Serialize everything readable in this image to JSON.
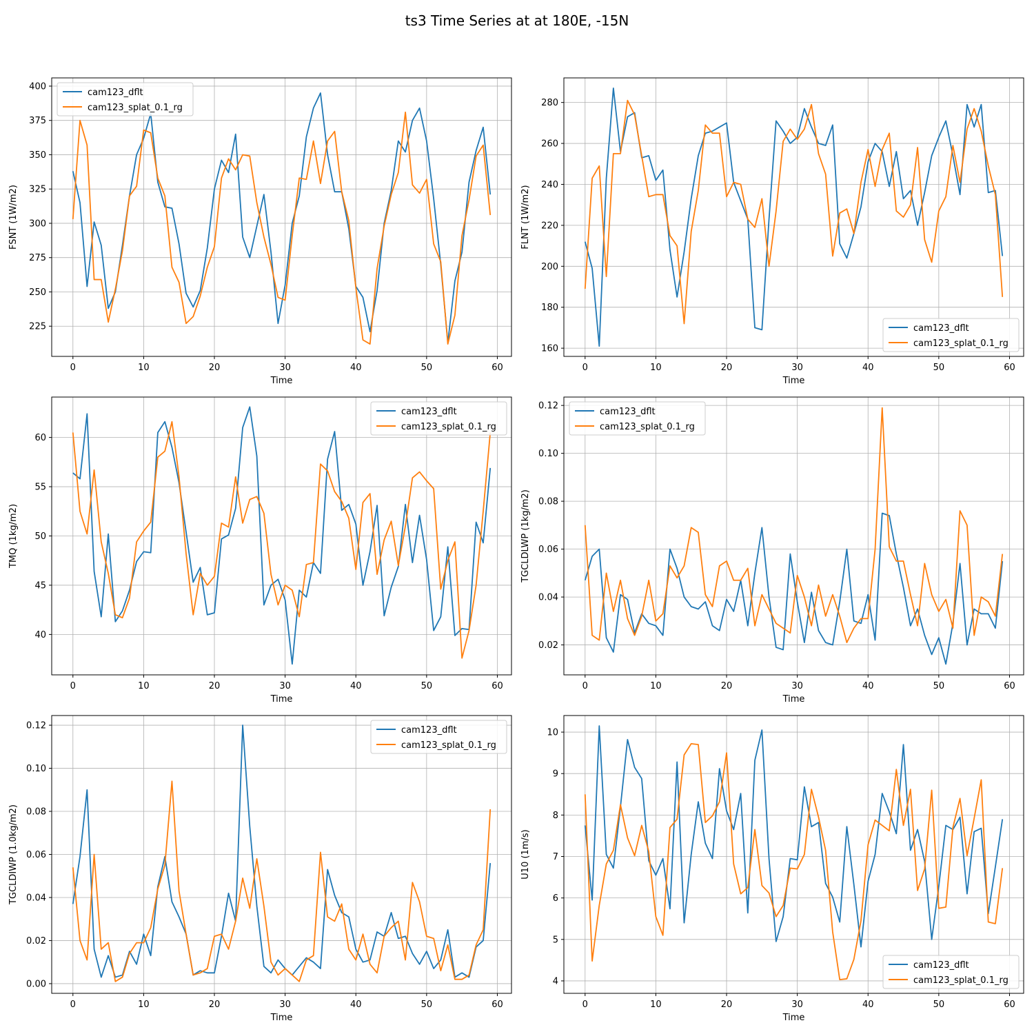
{
  "title": "ts3 Time Series at at 180E, -15N",
  "colors": {
    "series0": "#1f77b4",
    "series1": "#ff7f0e",
    "grid": "#b0b0b0",
    "axis": "#000000"
  },
  "chart_data": [
    {
      "type": "line",
      "xlabel": "Time",
      "ylabel": "FSNT (1W/m2)",
      "xlim": [
        -3,
        62
      ],
      "ylim": [
        203,
        406
      ],
      "xticks": [
        0,
        10,
        20,
        30,
        40,
        50,
        60
      ],
      "yticks": [
        225,
        250,
        275,
        300,
        325,
        350,
        375,
        400
      ],
      "ytick_labels": [
        "225",
        "250",
        "275",
        "300",
        "325",
        "350",
        "375",
        "400"
      ],
      "grid": true,
      "legend": "upper left",
      "series": [
        {
          "name": "cam123_dflt",
          "values": [
            338,
            315,
            254,
            301,
            284,
            238,
            250,
            284,
            320,
            350,
            362,
            380,
            330,
            312,
            311,
            285,
            249,
            239,
            251,
            282,
            325,
            346,
            337,
            365,
            290,
            275,
            298,
            321,
            279,
            227,
            255,
            300,
            320,
            363,
            384,
            395,
            350,
            323,
            323,
            296,
            254,
            246,
            221,
            251,
            300,
            324,
            360,
            352,
            375,
            384,
            360,
            318,
            270,
            213,
            258,
            279,
            330,
            353,
            370,
            321
          ]
        },
        {
          "name": "cam123_splat_0.1_rg",
          "values": [
            303,
            375,
            357,
            259,
            259,
            228,
            252,
            280,
            320,
            327,
            368,
            366,
            333,
            320,
            268,
            257,
            227,
            232,
            247,
            268,
            283,
            333,
            347,
            339,
            350,
            349,
            315,
            290,
            270,
            246,
            244,
            291,
            333,
            332,
            360,
            329,
            360,
            367,
            323,
            302,
            253,
            215,
            212,
            267,
            298,
            321,
            337,
            381,
            328,
            322,
            332,
            285,
            272,
            212,
            233,
            291,
            317,
            349,
            357,
            306
          ]
        }
      ]
    },
    {
      "type": "line",
      "xlabel": "Time",
      "ylabel": "FLNT (1W/m2)",
      "xlim": [
        -3,
        62
      ],
      "ylim": [
        156,
        292
      ],
      "xticks": [
        0,
        10,
        20,
        30,
        40,
        50,
        60
      ],
      "yticks": [
        160,
        180,
        200,
        220,
        240,
        260,
        280
      ],
      "ytick_labels": [
        "160",
        "180",
        "200",
        "220",
        "240",
        "260",
        "280"
      ],
      "grid": true,
      "legend": "lower right",
      "series": [
        {
          "name": "cam123_dflt",
          "values": [
            212,
            199,
            161,
            243,
            287,
            256,
            273,
            275,
            253,
            254,
            242,
            247,
            208,
            185,
            207,
            233,
            254,
            265,
            266,
            268,
            270,
            241,
            232,
            223,
            170,
            169,
            223,
            271,
            266,
            260,
            263,
            277,
            268,
            260,
            259,
            269,
            211,
            204,
            216,
            229,
            251,
            260,
            256,
            239,
            256,
            233,
            237,
            220,
            236,
            254,
            263,
            271,
            254,
            235,
            279,
            268,
            279,
            236,
            237,
            205
          ]
        },
        {
          "name": "cam123_splat_0.1_rg",
          "values": [
            189,
            243,
            249,
            195,
            255,
            255,
            281,
            274,
            254,
            234,
            235,
            235,
            215,
            210,
            172,
            217,
            237,
            269,
            265,
            265,
            234,
            241,
            240,
            223,
            219,
            233,
            200,
            227,
            261,
            267,
            262,
            267,
            279,
            255,
            245,
            205,
            226,
            228,
            216,
            241,
            257,
            239,
            257,
            265,
            227,
            224,
            230,
            258,
            213,
            202,
            227,
            234,
            259,
            241,
            267,
            277,
            266,
            249,
            235,
            185
          ]
        }
      ]
    },
    {
      "type": "line",
      "xlabel": "Time",
      "ylabel": "TMQ (1kg/m2)",
      "xlim": [
        -3,
        62
      ],
      "ylim": [
        35.9,
        64.1
      ],
      "xticks": [
        0,
        10,
        20,
        30,
        40,
        50,
        60
      ],
      "yticks": [
        40,
        45,
        50,
        55,
        60
      ],
      "ytick_labels": [
        "40",
        "45",
        "50",
        "55",
        "60"
      ],
      "grid": true,
      "legend": "upper right",
      "series": [
        {
          "name": "cam123_dflt",
          "values": [
            56.4,
            55.8,
            62.4,
            46.4,
            41.8,
            50.2,
            41.3,
            42.4,
            44.5,
            47.4,
            48.4,
            48.3,
            60.5,
            61.6,
            59.0,
            55.4,
            50.4,
            45.3,
            46.8,
            42.0,
            42.2,
            49.7,
            50.1,
            52.8,
            61.0,
            63.1,
            58.1,
            43.0,
            45.0,
            45.6,
            43.5,
            37.0,
            44.5,
            43.8,
            47.3,
            46.2,
            57.8,
            60.6,
            52.6,
            53.2,
            51.2,
            45.0,
            48.4,
            53.1,
            41.9,
            44.8,
            46.9,
            53.2,
            47.3,
            52.1,
            47.6,
            40.4,
            41.8,
            48.9,
            39.9,
            40.6,
            40.5,
            51.4,
            49.3,
            56.9
          ]
        },
        {
          "name": "cam123_splat_0.1_rg",
          "values": [
            60.5,
            52.5,
            50.2,
            56.7,
            49.4,
            46.2,
            42.0,
            41.7,
            43.7,
            49.4,
            50.5,
            51.4,
            58.0,
            58.6,
            61.6,
            56.0,
            48.2,
            42.0,
            46.2,
            45.0,
            45.9,
            51.3,
            50.9,
            56.0,
            51.3,
            53.7,
            54.0,
            52.3,
            46.1,
            43.0,
            45.0,
            44.5,
            41.8,
            47.1,
            47.3,
            57.3,
            56.6,
            54.5,
            53.5,
            51.8,
            46.6,
            53.4,
            54.3,
            46.1,
            49.6,
            51.5,
            47.0,
            51.0,
            55.9,
            56.5,
            55.6,
            54.8,
            44.6,
            47.5,
            49.4,
            37.6,
            40.4,
            45.0,
            52.5,
            60.5
          ]
        }
      ]
    },
    {
      "type": "line",
      "xlabel": "Time",
      "ylabel": "TGCLDLWP (1kg/m2)",
      "xlim": [
        -3,
        62
      ],
      "ylim": [
        0.0075,
        0.1235
      ],
      "xticks": [
        0,
        10,
        20,
        30,
        40,
        50,
        60
      ],
      "yticks": [
        0.02,
        0.04,
        0.06,
        0.08,
        0.1,
        0.12
      ],
      "ytick_labels": [
        "0.02",
        "0.04",
        "0.06",
        "0.08",
        "0.10",
        "0.12"
      ],
      "grid": true,
      "legend": "upper left",
      "series": [
        {
          "name": "cam123_dflt",
          "values": [
            0.047,
            0.057,
            0.06,
            0.023,
            0.017,
            0.041,
            0.039,
            0.025,
            0.033,
            0.029,
            0.028,
            0.024,
            0.06,
            0.052,
            0.04,
            0.036,
            0.035,
            0.038,
            0.028,
            0.026,
            0.039,
            0.034,
            0.047,
            0.028,
            0.05,
            0.069,
            0.04,
            0.019,
            0.018,
            0.058,
            0.038,
            0.021,
            0.042,
            0.026,
            0.021,
            0.02,
            0.038,
            0.06,
            0.03,
            0.029,
            0.041,
            0.022,
            0.075,
            0.074,
            0.058,
            0.044,
            0.028,
            0.035,
            0.024,
            0.016,
            0.023,
            0.012,
            0.029,
            0.054,
            0.02,
            0.035,
            0.033,
            0.033,
            0.027,
            0.055
          ]
        },
        {
          "name": "cam123_splat_0.1_rg",
          "values": [
            0.07,
            0.024,
            0.022,
            0.05,
            0.034,
            0.047,
            0.031,
            0.024,
            0.032,
            0.047,
            0.03,
            0.033,
            0.053,
            0.048,
            0.053,
            0.069,
            0.067,
            0.041,
            0.036,
            0.053,
            0.055,
            0.047,
            0.047,
            0.052,
            0.028,
            0.041,
            0.035,
            0.029,
            0.027,
            0.025,
            0.049,
            0.04,
            0.028,
            0.045,
            0.032,
            0.041,
            0.032,
            0.021,
            0.027,
            0.031,
            0.031,
            0.06,
            0.119,
            0.061,
            0.055,
            0.055,
            0.041,
            0.028,
            0.054,
            0.041,
            0.034,
            0.039,
            0.027,
            0.076,
            0.07,
            0.024,
            0.04,
            0.038,
            0.032,
            0.058
          ]
        }
      ]
    },
    {
      "type": "line",
      "xlabel": "Time",
      "ylabel": "TGCLDIWP (1.0kg/m2)",
      "xlim": [
        -3,
        62
      ],
      "ylim": [
        -0.0045,
        0.1245
      ],
      "xticks": [
        0,
        10,
        20,
        30,
        40,
        50,
        60
      ],
      "yticks": [
        0.0,
        0.02,
        0.04,
        0.06,
        0.08,
        0.1,
        0.12
      ],
      "ytick_labels": [
        "0.00",
        "0.02",
        "0.04",
        "0.06",
        "0.08",
        "0.10",
        "0.12"
      ],
      "grid": true,
      "legend": "upper right",
      "series": [
        {
          "name": "cam123_dflt",
          "values": [
            0.037,
            0.059,
            0.09,
            0.016,
            0.003,
            0.013,
            0.003,
            0.004,
            0.015,
            0.009,
            0.023,
            0.013,
            0.045,
            0.059,
            0.038,
            0.031,
            0.023,
            0.004,
            0.006,
            0.005,
            0.005,
            0.022,
            0.042,
            0.029,
            0.12,
            0.073,
            0.036,
            0.008,
            0.005,
            0.011,
            0.007,
            0.004,
            0.008,
            0.012,
            0.01,
            0.007,
            0.053,
            0.041,
            0.033,
            0.031,
            0.016,
            0.01,
            0.011,
            0.024,
            0.022,
            0.033,
            0.021,
            0.022,
            0.014,
            0.009,
            0.015,
            0.007,
            0.011,
            0.025,
            0.003,
            0.005,
            0.003,
            0.017,
            0.02,
            0.056
          ]
        },
        {
          "name": "cam123_splat_0.1_rg",
          "values": [
            0.054,
            0.02,
            0.011,
            0.06,
            0.016,
            0.019,
            0.001,
            0.003,
            0.014,
            0.019,
            0.019,
            0.026,
            0.044,
            0.055,
            0.094,
            0.043,
            0.023,
            0.004,
            0.005,
            0.007,
            0.022,
            0.023,
            0.016,
            0.029,
            0.049,
            0.035,
            0.058,
            0.036,
            0.01,
            0.004,
            0.007,
            0.004,
            0.001,
            0.011,
            0.013,
            0.061,
            0.031,
            0.029,
            0.037,
            0.016,
            0.011,
            0.023,
            0.009,
            0.005,
            0.022,
            0.026,
            0.029,
            0.011,
            0.047,
            0.038,
            0.022,
            0.021,
            0.006,
            0.018,
            0.002,
            0.002,
            0.004,
            0.018,
            0.025,
            0.081
          ]
        }
      ]
    },
    {
      "type": "line",
      "xlabel": "Time",
      "ylabel": "U10 (1m/s)",
      "xlim": [
        -3,
        62
      ],
      "ylim": [
        3.7,
        10.4
      ],
      "xticks": [
        0,
        10,
        20,
        30,
        40,
        50,
        60
      ],
      "yticks": [
        4,
        5,
        6,
        7,
        8,
        9,
        10
      ],
      "ytick_labels": [
        "4",
        "5",
        "6",
        "7",
        "8",
        "9",
        "10"
      ],
      "grid": true,
      "legend": "lower right",
      "series": [
        {
          "name": "cam123_dflt",
          "values": [
            7.75,
            5.95,
            10.15,
            7.05,
            6.72,
            8.2,
            9.82,
            9.15,
            8.88,
            6.9,
            6.55,
            6.95,
            5.74,
            9.28,
            5.4,
            7.05,
            8.32,
            7.32,
            6.95,
            9.12,
            8.1,
            7.65,
            8.52,
            5.64,
            9.32,
            10.05,
            6.95,
            4.95,
            5.55,
            6.95,
            6.92,
            8.68,
            7.72,
            7.82,
            6.35,
            6.02,
            5.42,
            7.72,
            6.32,
            4.82,
            6.4,
            7.05,
            8.52,
            8.08,
            7.55,
            9.7,
            7.15,
            7.65,
            6.88,
            5.0,
            6.28,
            7.75,
            7.65,
            7.95,
            6.1,
            7.6,
            7.68,
            5.62,
            6.75,
            7.9
          ]
        },
        {
          "name": "cam123_splat_0.1_rg",
          "values": [
            8.5,
            4.48,
            5.82,
            6.82,
            7.15,
            8.25,
            7.45,
            7.02,
            7.75,
            7.12,
            5.55,
            5.1,
            7.7,
            7.9,
            9.45,
            9.72,
            9.7,
            7.82,
            7.98,
            8.32,
            9.5,
            6.82,
            6.1,
            6.25,
            7.65,
            6.3,
            6.12,
            5.55,
            5.82,
            6.72,
            6.7,
            7.05,
            8.62,
            7.95,
            7.15,
            5.18,
            4.03,
            4.05,
            4.52,
            5.45,
            7.28,
            7.88,
            7.75,
            7.62,
            9.1,
            7.75,
            8.62,
            6.18,
            6.7,
            8.6,
            5.75,
            5.78,
            7.7,
            8.4,
            7.02,
            7.92,
            8.85,
            5.42,
            5.38,
            6.72
          ]
        }
      ]
    }
  ]
}
